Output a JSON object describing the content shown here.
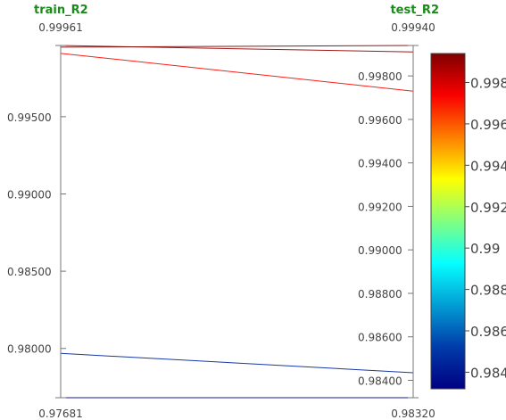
{
  "chart_data": {
    "type": "parallel_coordinates",
    "dimensions": [
      {
        "name": "train_R2",
        "range": [
          0.97681,
          0.99961
        ],
        "range_labels": [
          "0.99961",
          "0.97681"
        ],
        "ticks": [
          0.98,
          0.985,
          0.99,
          0.995
        ],
        "tick_labels": [
          "0.98000",
          "0.98500",
          "0.99000",
          "0.99500"
        ]
      },
      {
        "name": "test_R2",
        "range": [
          0.9832,
          0.9994
        ],
        "range_labels": [
          "0.99940",
          "0.98320"
        ],
        "ticks": [
          0.984,
          0.986,
          0.988,
          0.99,
          0.992,
          0.994,
          0.996,
          0.998
        ],
        "tick_labels": [
          "0.98400",
          "0.98600",
          "0.98800",
          "0.99000",
          "0.99200",
          "0.99400",
          "0.99600",
          "0.99800"
        ]
      }
    ],
    "lines": [
      {
        "train_R2": 0.99961,
        "test_R2": 0.9991,
        "color_value": 0.9991
      },
      {
        "train_R2": 0.9995,
        "test_R2": 0.9994,
        "color_value": 0.9994
      },
      {
        "train_R2": 0.9991,
        "test_R2": 0.9973,
        "color_value": 0.9973
      },
      {
        "train_R2": 0.97968,
        "test_R2": 0.98435,
        "color_value": 0.98435
      },
      {
        "train_R2": 0.97681,
        "test_R2": 0.9832,
        "color_value": 0.9832
      }
    ],
    "colorbar": {
      "colorscale": "Jet",
      "range": [
        0.9832,
        0.9994
      ],
      "ticks": [
        0.984,
        0.986,
        0.988,
        0.99,
        0.992,
        0.994,
        0.996,
        0.998
      ],
      "tick_labels": [
        "0.984",
        "0.986",
        "0.988",
        "0.99",
        "0.992",
        "0.994",
        "0.996",
        "0.998"
      ]
    }
  }
}
